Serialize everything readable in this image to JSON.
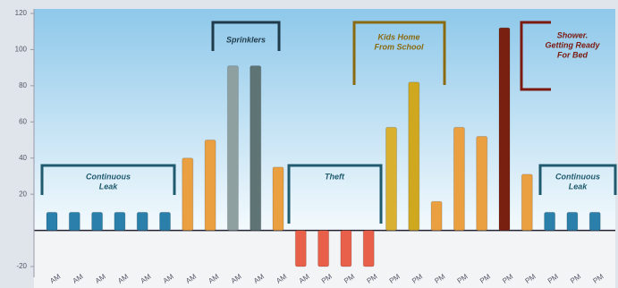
{
  "chart_data": {
    "type": "bar",
    "categories": [
      "AM",
      "AM",
      "AM",
      "AM",
      "AM",
      "AM",
      "AM",
      "AM",
      "AM",
      "AM",
      "AM",
      "AM",
      "PM",
      "PM",
      "PM",
      "PM",
      "PM",
      "PM",
      "PM",
      "PM",
      "PM",
      "PM",
      "PM",
      "PM",
      "PM"
    ],
    "values": [
      10,
      10,
      10,
      10,
      10,
      10,
      40,
      50,
      91,
      91,
      35,
      -20,
      -20,
      -20,
      -20,
      57,
      82,
      16,
      57,
      52,
      112,
      31,
      10,
      10,
      10
    ],
    "colors": [
      "#2a80aa",
      "#2a80aa",
      "#2a80aa",
      "#2a80aa",
      "#2a80aa",
      "#2a80aa",
      "#eaa040",
      "#eaa040",
      "#8fa0a0",
      "#5f7474",
      "#eaa040",
      "#e8604a",
      "#e8604a",
      "#e8604a",
      "#e8604a",
      "#d9b030",
      "#d0a820",
      "#eaa040",
      "#eaa040",
      "#eaa040",
      "#7a2010",
      "#eaa040",
      "#2a80aa",
      "#2a80aa",
      "#2a80aa"
    ],
    "ylim": [
      -20,
      120
    ],
    "yticks": [
      -20,
      20,
      40,
      60,
      80,
      100,
      120
    ],
    "annotations": [
      {
        "lines": [
          "Continuous",
          "Leak"
        ],
        "color": "#1f5a6e"
      },
      {
        "lines": [
          "Sprinklers"
        ],
        "color": "#1f3a4a"
      },
      {
        "lines": [
          "Theft"
        ],
        "color": "#1f5a6e"
      },
      {
        "lines": [
          "Kids Home",
          "From School"
        ],
        "color": "#8a6a10"
      },
      {
        "lines": [
          "Shower.",
          "Getting Ready",
          "For Bed"
        ],
        "color": "#7a1a10"
      },
      {
        "lines": [
          "Continuous",
          "Leak"
        ],
        "color": "#1f5a6e"
      }
    ]
  }
}
